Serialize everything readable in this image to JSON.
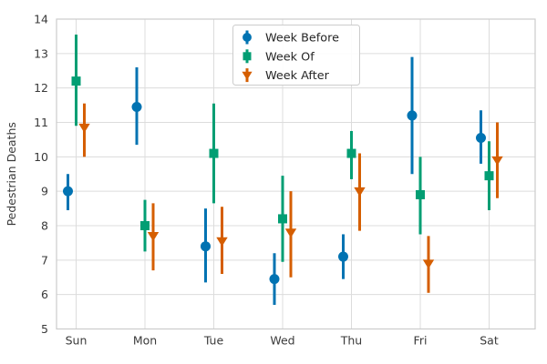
{
  "chart_data": {
    "type": "scatter",
    "title": "",
    "xlabel": "",
    "ylabel": "Pedestrian Deaths",
    "categories": [
      "Sun",
      "Mon",
      "Tue",
      "Wed",
      "Thu",
      "Fri",
      "Sat"
    ],
    "ylim": [
      5,
      14
    ],
    "yticks": [
      5,
      6,
      7,
      8,
      9,
      10,
      11,
      12,
      13,
      14
    ],
    "grid": true,
    "errorbars": true,
    "legend_position": "upper center",
    "series": [
      {
        "name": "Week Before",
        "marker": "circle",
        "color": "#0173b2",
        "values": [
          9.0,
          11.45,
          7.4,
          6.45,
          7.1,
          11.2,
          10.55
        ],
        "err_low": [
          8.45,
          10.35,
          6.35,
          5.7,
          6.45,
          9.5,
          9.8
        ],
        "err_high": [
          9.5,
          12.6,
          8.5,
          7.2,
          7.75,
          12.9,
          11.35
        ]
      },
      {
        "name": "Week Of",
        "marker": "square",
        "color": "#029e73",
        "values": [
          12.2,
          8.0,
          10.1,
          8.2,
          10.1,
          8.9,
          9.45
        ],
        "err_low": [
          10.9,
          7.25,
          8.65,
          6.95,
          9.35,
          7.75,
          8.45
        ],
        "err_high": [
          13.55,
          8.75,
          11.55,
          9.45,
          10.75,
          10.0,
          10.45
        ]
      },
      {
        "name": "Week After",
        "marker": "triangle-down",
        "color": "#d55e00",
        "values": [
          10.85,
          7.7,
          7.55,
          7.8,
          9.0,
          6.9,
          9.9
        ],
        "err_low": [
          10.0,
          6.7,
          6.6,
          6.5,
          7.85,
          6.05,
          8.8
        ],
        "err_high": [
          11.55,
          8.65,
          8.55,
          9.0,
          10.1,
          7.7,
          11.0
        ]
      }
    ]
  },
  "style": {
    "background": "#ffffff",
    "grid_color": "#dcdcdc",
    "spine_color": "#cccccc",
    "text_color": "#3a3a3a",
    "legend_border": "#cccccc",
    "legend_bg": "rgba(255,255,255,0.9)"
  }
}
